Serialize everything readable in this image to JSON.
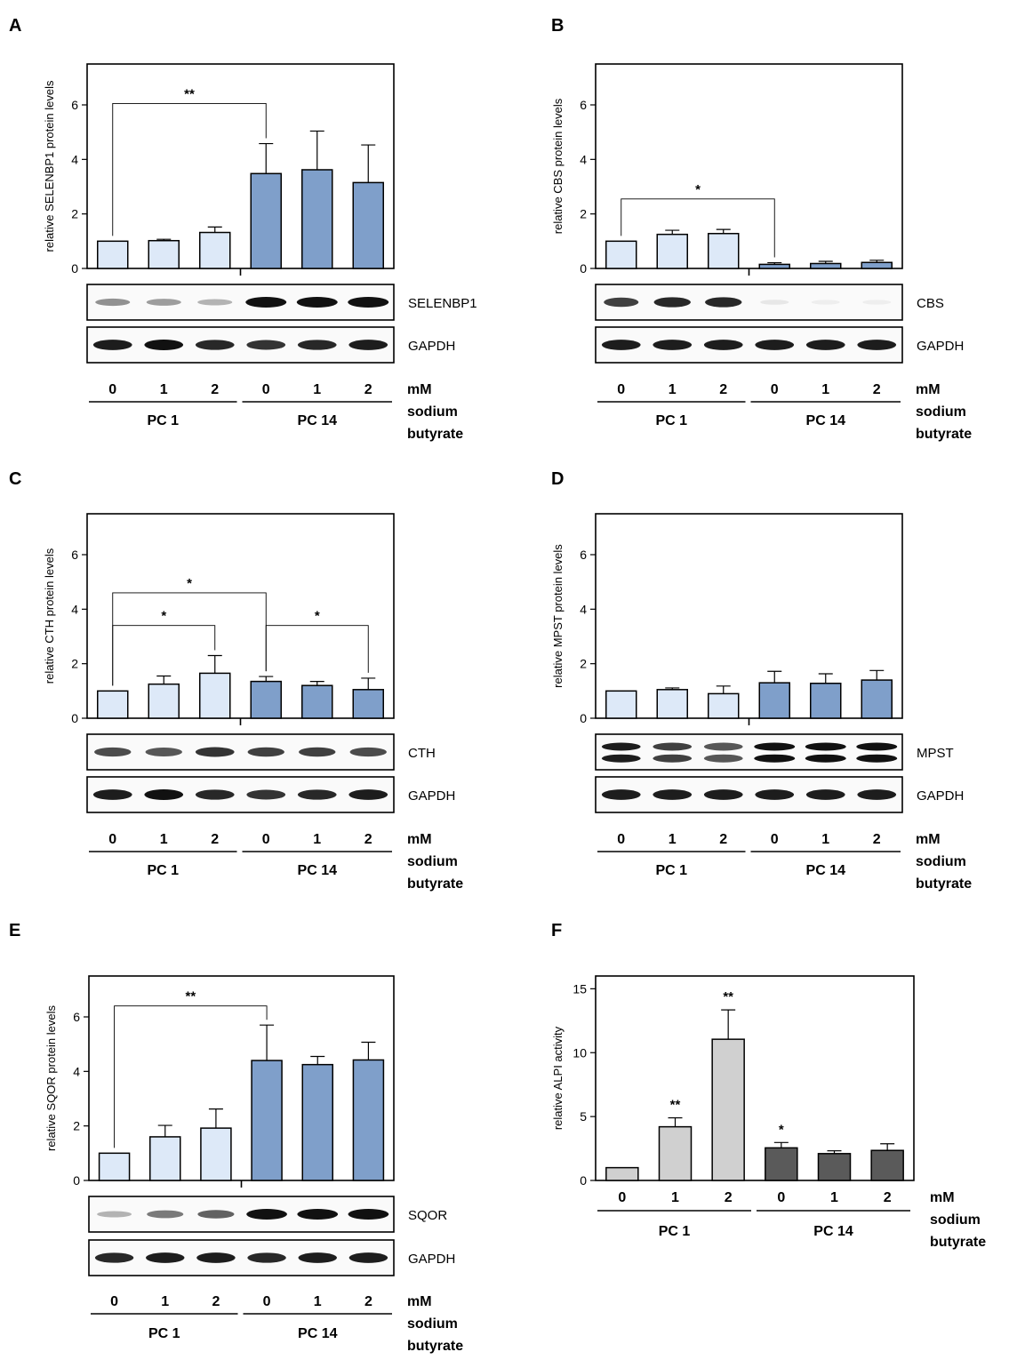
{
  "colors": {
    "pc1_bar": "#dde9f8",
    "pc14_bar": "#7f9fca",
    "alpi_pc1": "#d0d0d0",
    "alpi_pc14": "#5a5a5a",
    "band": "#111111"
  },
  "chart_data": [
    {
      "panel": "A",
      "type": "bar",
      "ylabel": "relative SELENBP1 protein levels",
      "ylim": [
        0,
        7.5
      ],
      "yticks": [
        0,
        2,
        4,
        6
      ],
      "categories": [
        "0",
        "1",
        "2",
        "0",
        "1",
        "2"
      ],
      "groups": [
        "PC 1",
        "PC 14"
      ],
      "unit": [
        "mM",
        "sodium",
        "butyrate"
      ],
      "values": [
        1.0,
        1.02,
        1.32,
        3.48,
        3.62,
        3.15
      ],
      "errors": [
        0.0,
        0.05,
        0.2,
        1.1,
        1.42,
        1.38
      ],
      "group_index": [
        0,
        0,
        0,
        1,
        1,
        1
      ],
      "significance": [
        {
          "from": 0,
          "to": 3,
          "y": 6.05,
          "label": "**"
        }
      ],
      "blots": [
        {
          "label": "SELENBP1",
          "intensities": [
            0.45,
            0.4,
            0.3,
            1.0,
            1.0,
            1.0
          ],
          "widths": [
            0.85,
            0.85,
            0.85,
            1.0,
            1.0,
            1.0
          ],
          "double": false
        },
        {
          "label": "GAPDH",
          "intensities": [
            0.95,
            1.0,
            0.9,
            0.85,
            0.9,
            0.95
          ],
          "widths": [
            0.95,
            0.95,
            0.95,
            0.95,
            0.95,
            0.95
          ],
          "double": false
        }
      ]
    },
    {
      "panel": "B",
      "type": "bar",
      "ylabel": "relative CBS protein levels",
      "ylim": [
        0,
        7.5
      ],
      "yticks": [
        0,
        2,
        4,
        6
      ],
      "categories": [
        "0",
        "1",
        "2",
        "0",
        "1",
        "2"
      ],
      "groups": [
        "PC 1",
        "PC 14"
      ],
      "unit": [
        "mM",
        "sodium",
        "butyrate"
      ],
      "values": [
        1.0,
        1.25,
        1.28,
        0.15,
        0.18,
        0.22
      ],
      "errors": [
        0.0,
        0.15,
        0.15,
        0.06,
        0.08,
        0.08
      ],
      "group_index": [
        0,
        0,
        0,
        1,
        1,
        1
      ],
      "significance": [
        {
          "from": 0,
          "to": 3,
          "y": 2.55,
          "label": "*"
        }
      ],
      "blots": [
        {
          "label": "CBS",
          "intensities": [
            0.8,
            0.9,
            0.9,
            0.08,
            0.05,
            0.05
          ],
          "widths": [
            0.85,
            0.9,
            0.9,
            0.7,
            0.7,
            0.7
          ],
          "double": false
        },
        {
          "label": "GAPDH",
          "intensities": [
            0.95,
            0.95,
            0.95,
            0.95,
            0.95,
            0.95
          ],
          "widths": [
            0.95,
            0.95,
            0.95,
            0.95,
            0.95,
            0.95
          ],
          "double": false
        }
      ]
    },
    {
      "panel": "C",
      "type": "bar",
      "ylabel": "relative CTH protein levels",
      "ylim": [
        0,
        7.5
      ],
      "yticks": [
        0,
        2,
        4,
        6
      ],
      "categories": [
        "0",
        "1",
        "2",
        "0",
        "1",
        "2"
      ],
      "groups": [
        "PC 1",
        "PC 14"
      ],
      "unit": [
        "mM",
        "sodium",
        "butyrate"
      ],
      "values": [
        1.0,
        1.25,
        1.65,
        1.35,
        1.2,
        1.05
      ],
      "errors": [
        0.0,
        0.3,
        0.65,
        0.18,
        0.15,
        0.42
      ],
      "group_index": [
        0,
        0,
        0,
        1,
        1,
        1
      ],
      "significance": [
        {
          "from": 0,
          "to": 3,
          "y": 4.6,
          "label": "*"
        },
        {
          "from": 0,
          "to": 2,
          "y": 3.4,
          "label": "*"
        },
        {
          "from": 3,
          "to": 5,
          "y": 3.4,
          "label": "*"
        }
      ],
      "blots": [
        {
          "label": "CTH",
          "intensities": [
            0.75,
            0.7,
            0.85,
            0.8,
            0.8,
            0.75
          ],
          "widths": [
            0.9,
            0.9,
            0.95,
            0.9,
            0.9,
            0.9
          ],
          "double": false
        },
        {
          "label": "GAPDH",
          "intensities": [
            0.95,
            1.0,
            0.9,
            0.85,
            0.9,
            0.95
          ],
          "widths": [
            0.95,
            0.95,
            0.95,
            0.95,
            0.95,
            0.95
          ],
          "double": false
        }
      ]
    },
    {
      "panel": "D",
      "type": "bar",
      "ylabel": "relative MPST protein levels",
      "ylim": [
        0,
        7.5
      ],
      "yticks": [
        0,
        2,
        4,
        6
      ],
      "categories": [
        "0",
        "1",
        "2",
        "0",
        "1",
        "2"
      ],
      "groups": [
        "PC 1",
        "PC 14"
      ],
      "unit": [
        "mM",
        "sodium",
        "butyrate"
      ],
      "values": [
        1.0,
        1.05,
        0.9,
        1.3,
        1.28,
        1.4
      ],
      "errors": [
        0.0,
        0.06,
        0.28,
        0.42,
        0.35,
        0.35
      ],
      "group_index": [
        0,
        0,
        0,
        1,
        1,
        1
      ],
      "significance": [],
      "blots": [
        {
          "label": "MPST",
          "intensities": [
            0.95,
            0.8,
            0.7,
            1.0,
            1.0,
            1.0
          ],
          "widths": [
            0.95,
            0.95,
            0.95,
            1.0,
            1.0,
            1.0
          ],
          "double": true
        },
        {
          "label": "GAPDH",
          "intensities": [
            0.95,
            0.95,
            0.95,
            0.95,
            0.95,
            0.95
          ],
          "widths": [
            0.95,
            0.95,
            0.95,
            0.95,
            0.95,
            0.95
          ],
          "double": false
        }
      ]
    },
    {
      "panel": "E",
      "type": "bar",
      "ylabel": "relative SQOR protein levels",
      "ylim": [
        0,
        7.5
      ],
      "yticks": [
        0,
        2,
        4,
        6
      ],
      "categories": [
        "0",
        "1",
        "2",
        "0",
        "1",
        "2"
      ],
      "groups": [
        "PC 1",
        "PC 14"
      ],
      "unit": [
        "mM",
        "sodium",
        "butyrate"
      ],
      "values": [
        1.0,
        1.6,
        1.92,
        4.4,
        4.25,
        4.42
      ],
      "errors": [
        0.0,
        0.42,
        0.7,
        1.3,
        0.3,
        0.65
      ],
      "group_index": [
        0,
        0,
        0,
        1,
        1,
        1
      ],
      "significance": [
        {
          "from": 0,
          "to": 3,
          "y": 6.4,
          "label": "**"
        }
      ],
      "blots": [
        {
          "label": "SQOR",
          "intensities": [
            0.3,
            0.55,
            0.65,
            1.0,
            1.0,
            1.0
          ],
          "widths": [
            0.85,
            0.9,
            0.9,
            1.0,
            1.0,
            1.0
          ],
          "double": false
        },
        {
          "label": "GAPDH",
          "intensities": [
            0.9,
            0.95,
            0.95,
            0.9,
            0.95,
            0.95
          ],
          "widths": [
            0.95,
            0.95,
            0.95,
            0.95,
            0.95,
            0.95
          ],
          "double": false
        }
      ]
    },
    {
      "panel": "F",
      "type": "bar",
      "ylabel": "relative ALPI activity",
      "ylim": [
        0,
        16
      ],
      "yticks": [
        0,
        5,
        10,
        15
      ],
      "categories": [
        "0",
        "1",
        "2",
        "0",
        "1",
        "2"
      ],
      "groups": [
        "PC 1",
        "PC 14"
      ],
      "unit": [
        "mM",
        "sodium",
        "butyrate"
      ],
      "values": [
        1.0,
        4.2,
        11.05,
        2.55,
        2.1,
        2.35
      ],
      "errors": [
        0.0,
        0.7,
        2.3,
        0.42,
        0.22,
        0.52
      ],
      "group_index": [
        0,
        0,
        0,
        1,
        1,
        1
      ],
      "bar_labels": [
        "",
        "**",
        "**",
        "*",
        "",
        ""
      ],
      "significance": [],
      "blots": []
    }
  ]
}
